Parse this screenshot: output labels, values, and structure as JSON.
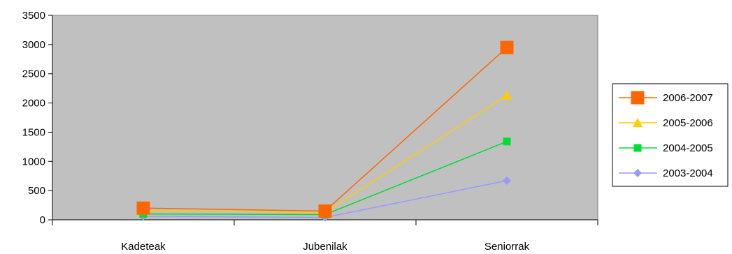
{
  "chart_data": {
    "type": "line",
    "categories": [
      "Kadeteak",
      "Jubenilak",
      "Seniorrak"
    ],
    "series": [
      {
        "name": "2006-2007",
        "values": [
          200,
          150,
          2950
        ],
        "color": "#FF6600",
        "marker": "square-large"
      },
      {
        "name": "2005-2006",
        "values": [
          160,
          125,
          2130
        ],
        "color": "#FFCC00",
        "marker": "triangle"
      },
      {
        "name": "2004-2005",
        "values": [
          100,
          90,
          1340
        ],
        "color": "#00DD33",
        "marker": "square"
      },
      {
        "name": "2003-2004",
        "values": [
          60,
          40,
          670
        ],
        "color": "#9999FF",
        "marker": "diamond"
      }
    ],
    "ylim": [
      0,
      3500
    ],
    "yticks": [
      0,
      500,
      1000,
      1500,
      2000,
      2500,
      3000,
      3500
    ],
    "grid": false,
    "legend": "right",
    "plot_background": "#C0C0C0"
  }
}
